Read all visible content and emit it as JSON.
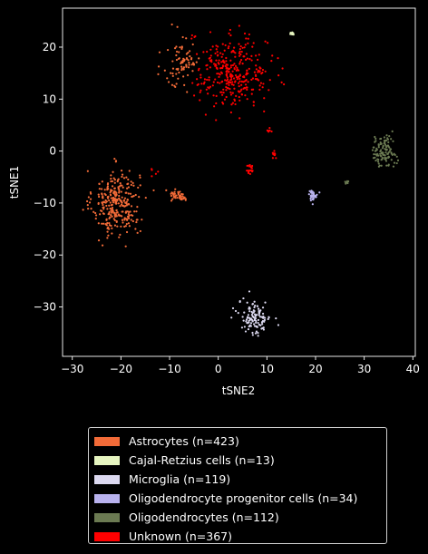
{
  "chart_data": {
    "type": "scatter",
    "title": "",
    "xlabel": "tSNE2",
    "ylabel": "tSNE1",
    "xlim": [
      -32,
      40.5
    ],
    "ylim": [
      -39.5,
      27.5
    ],
    "xticks": [
      -30,
      -20,
      -10,
      0,
      10,
      20,
      30,
      40
    ],
    "yticks": [
      -30,
      -20,
      -10,
      0,
      10,
      20
    ],
    "xtick_labels": [
      "−30",
      "−20",
      "−10",
      "0",
      "10",
      "20",
      "30",
      "40"
    ],
    "ytick_labels": [
      "−30",
      "−20",
      "−10",
      "0",
      "10",
      "20"
    ],
    "grid": false,
    "legend_position": "below plot",
    "series": [
      {
        "name": "Astrocytes (n=423)",
        "color": "#f26b38",
        "clusters": [
          {
            "center": [
              -21,
              -10
            ],
            "spread": [
              3.2,
              4.2
            ],
            "n": 300
          },
          {
            "center": [
              -7.5,
              17
            ],
            "spread": [
              2.5,
              3.5
            ],
            "n": 80
          },
          {
            "center": [
              -8,
              -8.5
            ],
            "spread": [
              1.4,
              0.8
            ],
            "n": 43
          }
        ]
      },
      {
        "name": "Cajal-Retzius cells (n=13)",
        "color": "#e6f5c0",
        "clusters": [
          {
            "center": [
              15.2,
              22.5
            ],
            "spread": [
              0.3,
              0.2
            ],
            "n": 13
          }
        ]
      },
      {
        "name": "Microglia (n=119)",
        "color": "#dcd9f0",
        "clusters": [
          {
            "center": [
              7.5,
              -32
            ],
            "spread": [
              2.2,
              2.2
            ],
            "n": 119
          }
        ]
      },
      {
        "name": "Oligodendrocyte progenitor cells (n=34)",
        "color": "#b9b2ee",
        "clusters": [
          {
            "center": [
              19.5,
              -8.5
            ],
            "spread": [
              0.6,
              0.7
            ],
            "n": 34
          }
        ]
      },
      {
        "name": "Oligodendrocytes (n=112)",
        "color": "#6b7a52",
        "clusters": [
          {
            "center": [
              34,
              0
            ],
            "spread": [
              1.7,
              2.0
            ],
            "n": 105
          },
          {
            "center": [
              26.5,
              -6
            ],
            "spread": [
              0.3,
              0.2
            ],
            "n": 7
          }
        ]
      },
      {
        "name": "Unknown (n=367)",
        "color": "#ff0000",
        "clusters": [
          {
            "center": [
              3,
              15
            ],
            "spread": [
              4.8,
              4.3
            ],
            "n": 320
          },
          {
            "center": [
              6.5,
              -3.5
            ],
            "spread": [
              0.6,
              0.8
            ],
            "n": 20
          },
          {
            "center": [
              11.5,
              -1
            ],
            "spread": [
              0.4,
              0.7
            ],
            "n": 12
          },
          {
            "center": [
              10.5,
              4
            ],
            "spread": [
              0.3,
              0.6
            ],
            "n": 6
          },
          {
            "center": [
              -13,
              -4
            ],
            "spread": [
              0.6,
              0.6
            ],
            "n": 5
          },
          {
            "center": [
              -4.5,
              22.5
            ],
            "spread": [
              0.6,
              0.5
            ],
            "n": 4
          }
        ]
      }
    ]
  }
}
